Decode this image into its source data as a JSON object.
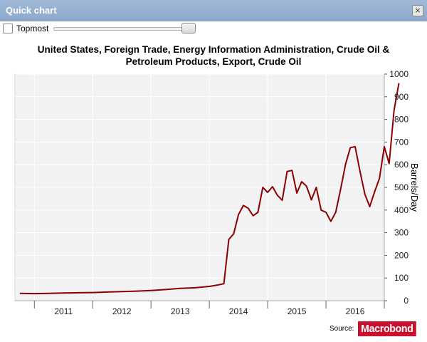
{
  "window": {
    "title": "Quick chart",
    "close_glyph": "×"
  },
  "toolbar": {
    "topmost_label": "Topmost",
    "topmost_checked": false,
    "opacity_level": 0.95
  },
  "chart_data": {
    "type": "line",
    "title": "United States, Foreign Trade, Energy Information Administration, Crude Oil & Petroleum Products, Export, Crude Oil",
    "xlabel": "",
    "ylabel": "Barrels/Day",
    "ylim": [
      0,
      1000
    ],
    "yticks": [
      0,
      100,
      200,
      300,
      400,
      500,
      600,
      700,
      800,
      900,
      1000
    ],
    "xlim": [
      "2010-09",
      "2017-01"
    ],
    "x_tick_labels": [
      "2011",
      "2012",
      "2013",
      "2014",
      "2015",
      "2016"
    ],
    "grid": true,
    "line_color": "#8b0000",
    "series": [
      {
        "points": [
          [
            "2010-10",
            32
          ],
          [
            "2011-01",
            31
          ],
          [
            "2011-04",
            32
          ],
          [
            "2011-07",
            34
          ],
          [
            "2011-10",
            35
          ],
          [
            "2012-01",
            36
          ],
          [
            "2012-04",
            38
          ],
          [
            "2012-07",
            40
          ],
          [
            "2012-10",
            42
          ],
          [
            "2013-01",
            45
          ],
          [
            "2013-04",
            49
          ],
          [
            "2013-07",
            54
          ],
          [
            "2013-10",
            57
          ],
          [
            "2014-01",
            63
          ],
          [
            "2014-03",
            70
          ],
          [
            "2014-04",
            75
          ],
          [
            "2014-05",
            270
          ],
          [
            "2014-06",
            295
          ],
          [
            "2014-07",
            380
          ],
          [
            "2014-08",
            420
          ],
          [
            "2014-09",
            408
          ],
          [
            "2014-10",
            375
          ],
          [
            "2014-11",
            390
          ],
          [
            "2014-12",
            500
          ],
          [
            "2015-01",
            478
          ],
          [
            "2015-02",
            503
          ],
          [
            "2015-03",
            465
          ],
          [
            "2015-04",
            443
          ],
          [
            "2015-05",
            570
          ],
          [
            "2015-06",
            575
          ],
          [
            "2015-07",
            475
          ],
          [
            "2015-08",
            525
          ],
          [
            "2015-09",
            505
          ],
          [
            "2015-10",
            445
          ],
          [
            "2015-11",
            500
          ],
          [
            "2015-12",
            400
          ],
          [
            "2016-01",
            390
          ],
          [
            "2016-02",
            350
          ],
          [
            "2016-03",
            390
          ],
          [
            "2016-04",
            490
          ],
          [
            "2016-05",
            600
          ],
          [
            "2016-06",
            675
          ],
          [
            "2016-07",
            680
          ],
          [
            "2016-08",
            570
          ],
          [
            "2016-09",
            470
          ],
          [
            "2016-10",
            415
          ],
          [
            "2016-11",
            480
          ],
          [
            "2016-12",
            540
          ],
          [
            "2017-01",
            680
          ],
          [
            "2017-02",
            605
          ],
          [
            "2017-03",
            840
          ],
          [
            "2017-04",
            960
          ]
        ]
      }
    ]
  },
  "footer": {
    "source_label": "Source:",
    "logo_text": "Macrobond"
  }
}
